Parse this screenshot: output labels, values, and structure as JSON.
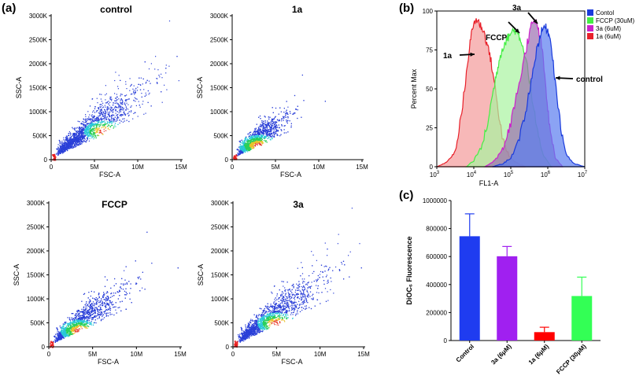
{
  "figure": {
    "panel_letters": {
      "a": "(a)",
      "b": "(b)",
      "c": "(c)"
    }
  },
  "chart_data": [
    {
      "type": "scatter",
      "title": "control",
      "xlabel": "FSC-A",
      "ylabel": "SSC-A",
      "x_ticks": [
        "0",
        "5M",
        "10M",
        "15M"
      ],
      "y_ticks": [
        "0",
        "500K",
        "1000K",
        "1500K",
        "2000K",
        "2500K",
        "3000K"
      ],
      "xlim": [
        0,
        15000000
      ],
      "ylim": [
        0,
        3000000
      ],
      "cloud": {
        "center_x": 7000000,
        "center_y": 700000,
        "spread": "wide",
        "density_peak_x": 6000000,
        "density_peak_y": 600000,
        "slope": 0.1
      },
      "color": "#3333dd"
    },
    {
      "type": "scatter",
      "title": "1a",
      "xlabel": "FSC-A",
      "ylabel": "SSC-A",
      "x_ticks": [
        "0",
        "5M",
        "10M",
        "15M"
      ],
      "y_ticks": [
        "0",
        "500K",
        "1000K",
        "1500K",
        "2000K",
        "2500K",
        "3000K"
      ],
      "xlim": [
        0,
        15000000
      ],
      "ylim": [
        0,
        3000000
      ],
      "cloud": {
        "center_x": 3500000,
        "center_y": 350000,
        "spread": "narrow",
        "density_peak_x": 3000000,
        "density_peak_y": 300000,
        "slope": 0.1
      },
      "color": "#3333dd"
    },
    {
      "type": "scatter",
      "title": "FCCP",
      "xlabel": "FSC-A",
      "ylabel": "SSC-A",
      "x_ticks": [
        "0",
        "5M",
        "10M",
        "15M"
      ],
      "y_ticks": [
        "0",
        "500K",
        "1000K",
        "1500K",
        "2000K",
        "2500K",
        "3000K"
      ],
      "xlim": [
        0,
        15000000
      ],
      "ylim": [
        0,
        3000000
      ],
      "cloud": {
        "center_x": 4500000,
        "center_y": 450000,
        "spread": "medium",
        "density_peak_x": 3500000,
        "density_peak_y": 350000,
        "slope": 0.1
      },
      "color": "#3333dd"
    },
    {
      "type": "scatter",
      "title": "3a",
      "xlabel": "FSC-A",
      "ylabel": "SSC-A",
      "x_ticks": [
        "0",
        "5M",
        "10M",
        "15M"
      ],
      "y_ticks": [
        "0",
        "500K",
        "1000K",
        "1500K",
        "2000K",
        "2500K",
        "3000K"
      ],
      "xlim": [
        0,
        15000000
      ],
      "ylim": [
        0,
        3000000
      ],
      "cloud": {
        "center_x": 6500000,
        "center_y": 650000,
        "spread": "wide",
        "density_peak_x": 5000000,
        "density_peak_y": 500000,
        "slope": 0.1
      },
      "color": "#3333dd"
    },
    {
      "type": "area",
      "xlabel": "FL1-A",
      "ylabel": "Percent Max",
      "x_scale": "log",
      "x_ticks": [
        {
          "base": "10",
          "exp": "3"
        },
        {
          "base": "10",
          "exp": "4"
        },
        {
          "base": "10",
          "exp": "5"
        },
        {
          "base": "10",
          "exp": "6"
        },
        {
          "base": "10",
          "exp": "7"
        }
      ],
      "y_ticks": [
        "0",
        "25",
        "50",
        "75",
        "100"
      ],
      "ylim": [
        0,
        100
      ],
      "legend": [
        {
          "label": "Contol",
          "color": "#1a3bdc"
        },
        {
          "label": "FCCP (30uM)",
          "color": "#44ee44"
        },
        {
          "label": "3a (6uM)",
          "color": "#cc22cc"
        },
        {
          "label": "1a (6uM)",
          "color": "#e8202a"
        }
      ],
      "series": [
        {
          "name": "1a (6uM)",
          "color": "#e8202a",
          "fill": "#f39a9a",
          "x_log": [
            3.0,
            3.2,
            3.4,
            3.55,
            3.7,
            3.85,
            3.95,
            4.05,
            4.15,
            4.25,
            4.35,
            4.45,
            4.55,
            4.65,
            4.75,
            4.85,
            5.0,
            5.2,
            5.4
          ],
          "y": [
            0,
            2,
            6,
            15,
            40,
            70,
            88,
            95,
            92,
            88,
            80,
            70,
            55,
            38,
            22,
            12,
            5,
            2,
            0
          ]
        },
        {
          "name": "FCCP (30uM)",
          "color": "#44ee44",
          "fill": "#a8f4a0",
          "x_log": [
            3.8,
            4.0,
            4.2,
            4.35,
            4.5,
            4.6,
            4.7,
            4.8,
            4.9,
            5.0,
            5.1,
            5.2,
            5.3,
            5.45,
            5.6,
            5.75,
            5.9,
            6.1
          ],
          "y": [
            0,
            4,
            12,
            25,
            45,
            58,
            70,
            78,
            82,
            86,
            88,
            85,
            80,
            65,
            40,
            18,
            6,
            0
          ]
        },
        {
          "name": "3a (6uM)",
          "color": "#cc22cc",
          "fill": "#9b6fb0",
          "x_log": [
            4.3,
            4.5,
            4.7,
            4.85,
            5.0,
            5.15,
            5.3,
            5.45,
            5.55,
            5.65,
            5.75,
            5.85,
            5.95,
            6.05,
            6.2,
            6.4
          ],
          "y": [
            0,
            3,
            8,
            15,
            28,
            45,
            62,
            80,
            90,
            94,
            88,
            75,
            50,
            25,
            6,
            0
          ]
        },
        {
          "name": "Contol",
          "color": "#1a3bdc",
          "fill": "#5a7cf0",
          "x_log": [
            4.5,
            4.8,
            5.0,
            5.2,
            5.4,
            5.55,
            5.7,
            5.8,
            5.9,
            6.0,
            6.1,
            6.2,
            6.35,
            6.5,
            6.7,
            7.0
          ],
          "y": [
            0,
            2,
            6,
            15,
            35,
            55,
            75,
            85,
            90,
            88,
            78,
            55,
            25,
            8,
            2,
            0
          ]
        }
      ],
      "annotations": [
        {
          "text": "FCCP"
        },
        {
          "text": "3a"
        },
        {
          "text": "1a"
        },
        {
          "text": "control"
        }
      ]
    },
    {
      "type": "bar",
      "ylabel": "DiOC₆ Fluorescence",
      "ylim": [
        0,
        1000000
      ],
      "y_ticks": [
        "0",
        "200000",
        "400000",
        "600000",
        "800000",
        "1000000"
      ],
      "categories": [
        "Control",
        "3a (6μM)",
        "1a (6μM)",
        "FCCP (30μM)"
      ],
      "values": [
        745000,
        602000,
        60000,
        318000
      ],
      "errors": [
        160000,
        70000,
        35000,
        135000
      ],
      "colors": [
        "#1f3cf0",
        "#a020f0",
        "#ff0000",
        "#33ff55"
      ]
    }
  ]
}
